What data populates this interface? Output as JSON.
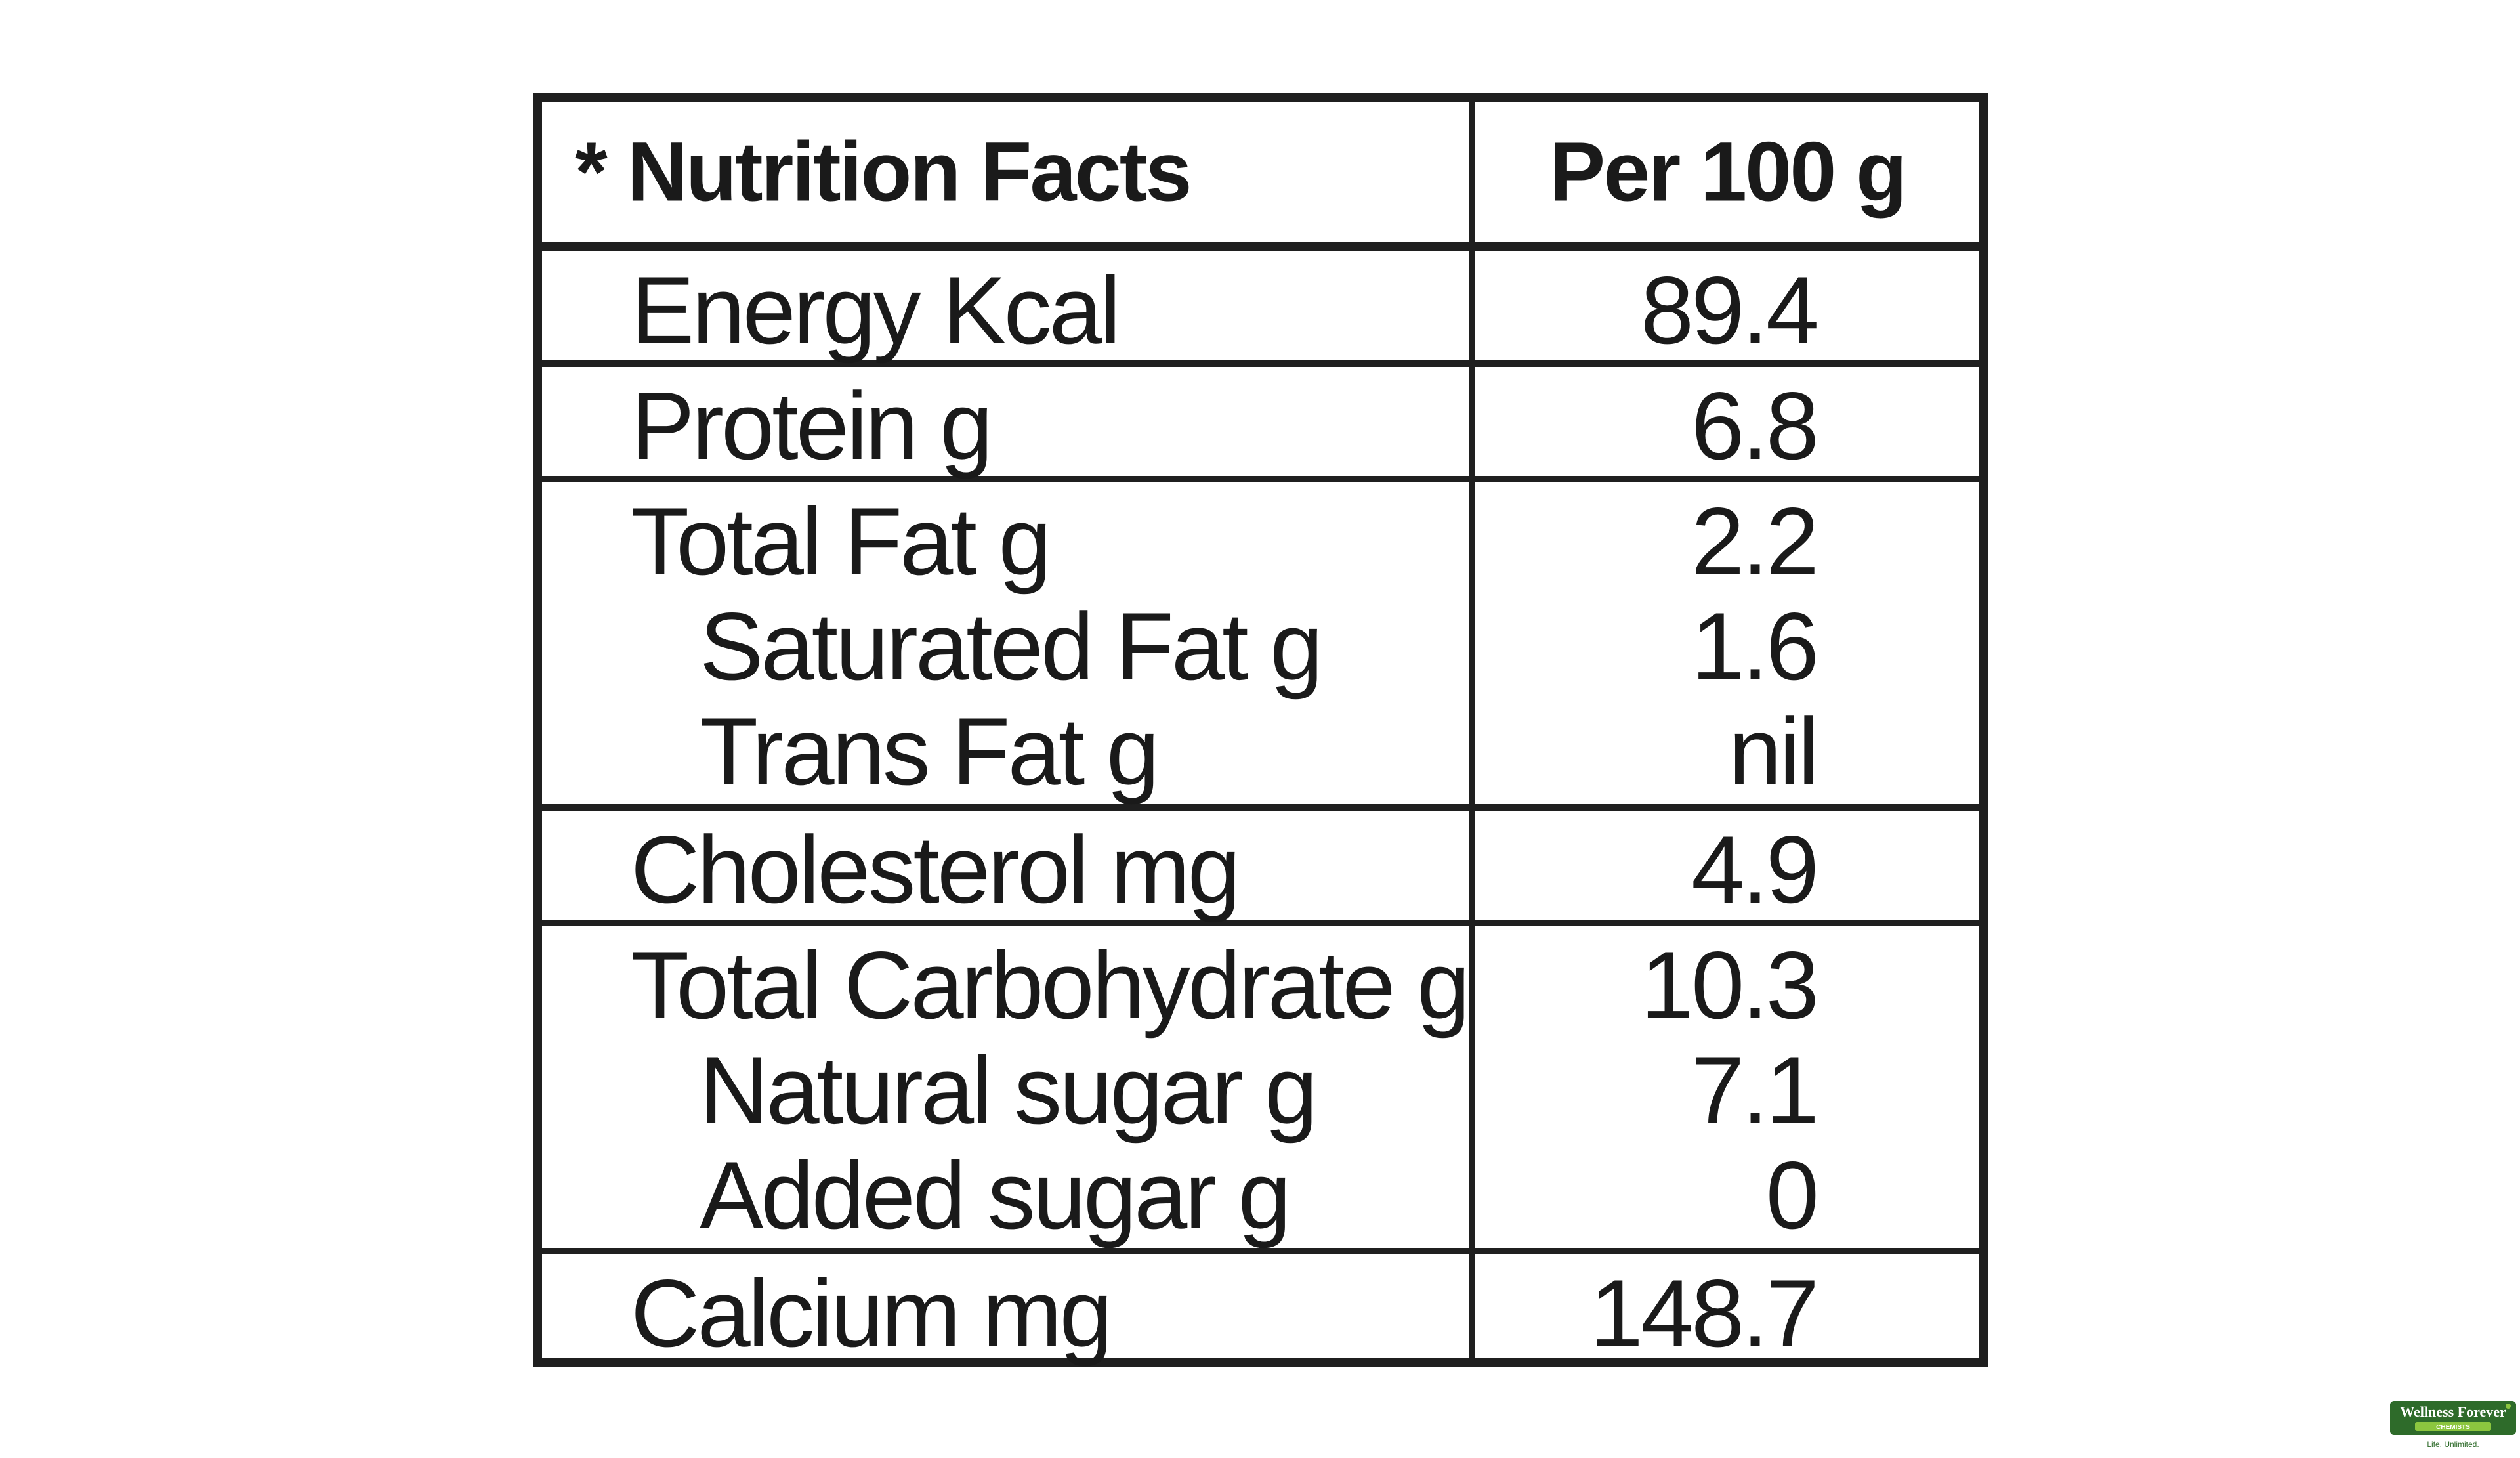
{
  "table": {
    "header": {
      "label": "* Nutrition Facts",
      "value": "Per 100 g"
    },
    "rows": [
      {
        "label": "Energy Kcal",
        "value": "89.4"
      },
      {
        "label": "Protein g",
        "value": "6.8"
      },
      {
        "label": "Total Fat g",
        "value": "2.2",
        "sub": [
          {
            "label": "Saturated Fat g",
            "value": "1.6"
          },
          {
            "label": "Trans Fat g",
            "value": "nil"
          }
        ]
      },
      {
        "label": "Cholesterol mg",
        "value": "4.9"
      },
      {
        "label": "Total Carbohydrate g",
        "value": "10.3",
        "sub": [
          {
            "label": "Natural sugar g",
            "value": "7.1"
          },
          {
            "label": "Added sugar g",
            "value": "0"
          }
        ]
      },
      {
        "label": "Calcium mg",
        "value": "148.7"
      }
    ]
  },
  "watermark": {
    "brand": "Wellness Forever",
    "subline": "CHEMISTS",
    "tagline": "Life. Unlimited.",
    "color": "#2e6b2a"
  }
}
